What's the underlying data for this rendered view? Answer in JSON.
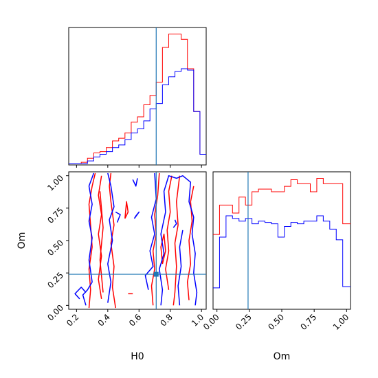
{
  "colors": {
    "red_series": "#ff0000",
    "blue_series": "#0000ff",
    "truth_marker": "#1f77b4",
    "axes": "#000000"
  },
  "chart_data": {
    "type": "corner",
    "parameters": [
      "H0",
      "Om"
    ],
    "truth": {
      "H0": 0.71,
      "Om": 0.24
    },
    "axis_ranges": {
      "H0": [
        0.15,
        1.03
      ],
      "Om": [
        -0.03,
        1.03
      ]
    },
    "panels": {
      "h0_histogram": {
        "type": "histogram",
        "x_ticks": [
          0.2,
          0.4,
          0.6,
          0.8,
          1.0
        ],
        "y_ticks_visible": false,
        "bins": [
          0.15,
          0.19,
          0.23,
          0.27,
          0.31,
          0.35,
          0.39,
          0.43,
          0.47,
          0.51,
          0.55,
          0.59,
          0.63,
          0.67,
          0.71,
          0.75,
          0.79,
          0.83,
          0.87,
          0.91,
          0.95,
          0.99,
          1.03
        ],
        "series": [
          {
            "name": "red",
            "counts": [
              1,
              1,
              2,
              5,
              9,
              10,
              13,
              18,
              20,
              24,
              32,
              36,
              45,
              52,
              62,
              88,
              98,
              98,
              94,
              72,
              40,
              8
            ]
          },
          {
            "name": "blue",
            "counts": [
              1,
              1,
              1,
              3,
              6,
              8,
              10,
              13,
              15,
              19,
              24,
              27,
              33,
              42,
              46,
              60,
              66,
              70,
              72,
              71,
              40,
              8
            ]
          }
        ]
      },
      "om_histogram": {
        "type": "histogram",
        "x_ticks": [
          0.0,
          0.25,
          0.5,
          0.75,
          1.0
        ],
        "x_tick_labels": [
          "0.00",
          "0.25",
          "0.50",
          "0.75",
          "1.00"
        ],
        "y_ticks_visible": false,
        "bins": [
          -0.03,
          0.02,
          0.07,
          0.12,
          0.17,
          0.22,
          0.27,
          0.32,
          0.37,
          0.42,
          0.47,
          0.52,
          0.57,
          0.62,
          0.67,
          0.72,
          0.77,
          0.82,
          0.87,
          0.92,
          0.97,
          1.03
        ],
        "series": [
          {
            "name": "red",
            "counts": [
              56,
              78,
              78,
              72,
              84,
              78,
              88,
              90,
              90,
              88,
              88,
              92,
              97,
              94,
              94,
              88,
              98,
              94,
              94,
              94,
              64
            ]
          },
          {
            "name": "blue",
            "counts": [
              16,
              54,
              70,
              68,
              66,
              68,
              64,
              66,
              65,
              64,
              54,
              62,
              65,
              64,
              66,
              66,
              70,
              66,
              60,
              52,
              17
            ]
          }
        ]
      },
      "joint": {
        "type": "contour",
        "x_param": "H0",
        "y_param": "Om",
        "x_ticks": [
          0.2,
          0.4,
          0.6,
          0.8,
          1.0
        ],
        "y_ticks": [
          0.0,
          0.25,
          0.5,
          0.75,
          1.0
        ],
        "y_tick_labels": [
          "0.00",
          "0.25",
          "0.50",
          "0.75",
          "1.00"
        ],
        "xlabel": "H0",
        "ylabel": "Om",
        "series": [
          {
            "name": "red",
            "contours": [
              [
                [
                  0.28,
                  -0.02
                ],
                [
                  0.29,
                  0.12
                ],
                [
                  0.28,
                  0.28
                ],
                [
                  0.3,
                  0.45
                ],
                [
                  0.29,
                  0.62
                ],
                [
                  0.28,
                  0.78
                ],
                [
                  0.3,
                  0.92
                ],
                [
                  0.32,
                  1.02
                ]
              ],
              [
                [
                  0.45,
                  -0.02
                ],
                [
                  0.43,
                  0.14
                ],
                [
                  0.44,
                  0.3
                ],
                [
                  0.42,
                  0.48
                ],
                [
                  0.44,
                  0.62
                ],
                [
                  0.42,
                  0.8
                ],
                [
                  0.41,
                  0.92
                ],
                [
                  0.42,
                  1.02
                ]
              ],
              [
                [
                  0.36,
                  0.05
                ],
                [
                  0.34,
                  0.2
                ],
                [
                  0.36,
                  0.38
                ],
                [
                  0.34,
                  0.55
                ],
                [
                  0.36,
                  0.7
                ],
                [
                  0.34,
                  0.85
                ],
                [
                  0.36,
                  1.0
                ]
              ],
              [
                [
                  0.37,
                  0.1
                ],
                [
                  0.35,
                  0.35
                ],
                [
                  0.37,
                  0.6
                ],
                [
                  0.35,
                  0.88
                ]
              ],
              [
                [
                  0.69,
                  0.0
                ],
                [
                  0.68,
                  0.15
                ],
                [
                  0.7,
                  0.28
                ],
                [
                  0.69,
                  0.42
                ],
                [
                  0.71,
                  0.55
                ],
                [
                  0.7,
                  0.7
                ],
                [
                  0.72,
                  0.85
                ],
                [
                  0.73,
                  1.02
                ]
              ],
              [
                [
                  0.79,
                  0.12
                ],
                [
                  0.77,
                  0.28
                ],
                [
                  0.79,
                  0.42
                ],
                [
                  0.78,
                  0.58
                ],
                [
                  0.8,
                  0.72
                ],
                [
                  0.79,
                  0.88
                ],
                [
                  0.81,
                  1.0
                ]
              ],
              [
                [
                  0.82,
                  0.0
                ],
                [
                  0.83,
                  0.1
                ],
                [
                  0.84,
                  0.3
                ],
                [
                  0.83,
                  0.48
                ],
                [
                  0.85,
                  0.62
                ],
                [
                  0.84,
                  0.8
                ],
                [
                  0.86,
                  1.0
                ]
              ],
              [
                [
                  0.92,
                  0.04
                ],
                [
                  0.91,
                  0.18
                ],
                [
                  0.93,
                  0.32
                ],
                [
                  0.92,
                  0.5
                ],
                [
                  0.94,
                  0.65
                ],
                [
                  0.93,
                  0.8
                ],
                [
                  0.95,
                  0.92
                ]
              ],
              [
                [
                  0.75,
                  0.32
                ],
                [
                  0.74,
                  0.45
                ],
                [
                  0.76,
                  0.55
                ],
                [
                  0.77,
                  0.42
                ],
                [
                  0.75,
                  0.32
                ]
              ],
              [
                [
                  0.51,
                  0.67
                ],
                [
                  0.53,
                  0.72
                ],
                [
                  0.52,
                  0.8
                ],
                [
                  0.51,
                  0.67
                ]
              ],
              [
                [
                  0.53,
                  0.09
                ],
                [
                  0.56,
                  0.09
                ]
              ]
            ]
          },
          {
            "name": "blue",
            "contours": [
              [
                [
                  0.26,
                  0.0
                ],
                [
                  0.24,
                  0.08
                ],
                [
                  0.27,
                  0.12
                ],
                [
                  0.3,
                  0.18
                ],
                [
                  0.28,
                  0.35
                ],
                [
                  0.3,
                  0.52
                ],
                [
                  0.28,
                  0.65
                ],
                [
                  0.3,
                  0.78
                ],
                [
                  0.28,
                  0.92
                ],
                [
                  0.31,
                  1.02
                ]
              ],
              [
                [
                  0.22,
                  0.05
                ],
                [
                  0.19,
                  0.09
                ],
                [
                  0.23,
                  0.14
                ],
                [
                  0.26,
                  0.1
                ]
              ],
              [
                [
                  0.4,
                  0.02
                ],
                [
                  0.42,
                  0.18
                ],
                [
                  0.4,
                  0.32
                ],
                [
                  0.43,
                  0.5
                ],
                [
                  0.41,
                  0.66
                ],
                [
                  0.44,
                  0.76
                ],
                [
                  0.42,
                  0.92
                ],
                [
                  0.4,
                  1.02
                ]
              ],
              [
                [
                  0.46,
                  0.64
                ],
                [
                  0.48,
                  0.7
                ],
                [
                  0.45,
                  0.72
                ]
              ],
              [
                [
                  0.66,
                  0.12
                ],
                [
                  0.64,
                  0.23
                ],
                [
                  0.69,
                  0.3
                ],
                [
                  0.67,
                  0.42
                ],
                [
                  0.7,
                  0.55
                ],
                [
                  0.68,
                  0.68
                ],
                [
                  0.71,
                  0.82
                ],
                [
                  0.7,
                  1.02
                ]
              ],
              [
                [
                  0.74,
                  0.0
                ],
                [
                  0.75,
                  0.12
                ],
                [
                  0.73,
                  0.28
                ],
                [
                  0.76,
                  0.4
                ],
                [
                  0.74,
                  0.55
                ],
                [
                  0.77,
                  0.72
                ],
                [
                  0.76,
                  0.88
                ],
                [
                  0.79,
                  1.0
                ],
                [
                  0.84,
                  0.98
                ],
                [
                  0.88,
                  1.0
                ],
                [
                  0.93,
                  0.95
                ],
                [
                  0.92,
                  0.8
                ],
                [
                  0.95,
                  0.68
                ],
                [
                  0.94,
                  0.55
                ],
                [
                  0.96,
                  0.4
                ],
                [
                  0.95,
                  0.25
                ],
                [
                  0.97,
                  0.1
                ],
                [
                  0.96,
                  0.0
                ]
              ],
              [
                [
                  0.86,
                  0.0
                ],
                [
                  0.85,
                  0.15
                ],
                [
                  0.87,
                  0.3
                ],
                [
                  0.86,
                  0.45
                ],
                [
                  0.88,
                  0.58
                ]
              ],
              [
                [
                  0.57,
                  0.67
                ],
                [
                  0.6,
                  0.72
                ],
                [
                  0.58,
                  0.69
                ],
                [
                  0.57,
                  0.67
                ]
              ],
              [
                [
                  0.82,
                  0.6
                ],
                [
                  0.84,
                  0.63
                ],
                [
                  0.83,
                  0.66
                ]
              ],
              [
                [
                  0.56,
                  0.97
                ],
                [
                  0.58,
                  0.92
                ],
                [
                  0.59,
                  0.98
                ]
              ]
            ]
          }
        ]
      }
    }
  }
}
